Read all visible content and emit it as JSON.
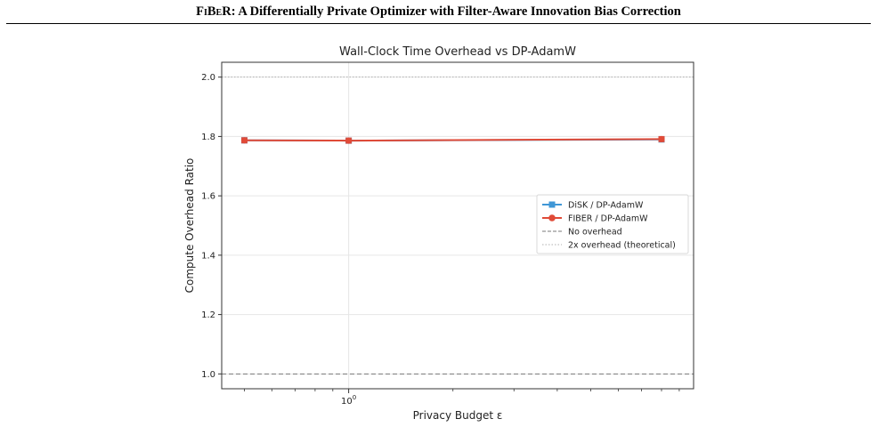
{
  "paper": {
    "header_name": "FiBeR",
    "header_rest": ": A Differentially Private Optimizer with Filter-Aware Innovation Bias Correction"
  },
  "chart_data": {
    "type": "line",
    "title": "Wall-Clock Time Overhead vs DP-AdamW",
    "xlabel": "Privacy Budget ε",
    "ylabel": "Compute Overhead Ratio",
    "x_scale": "log",
    "x_tick_labels": [
      {
        "base": "10",
        "exp": "0"
      }
    ],
    "y_tick_labels": [
      "1.0",
      "1.2",
      "1.4",
      "1.6",
      "1.8",
      "2.0"
    ],
    "ylim": [
      0.95,
      2.05
    ],
    "xlim": [
      0.43,
      9.9
    ],
    "grid": true,
    "legend_position": "center-right",
    "x": [
      0.5,
      1.0,
      8.0
    ],
    "series": [
      {
        "name": "DiSK / DP-AdamW",
        "values": [
          1.787,
          1.786,
          1.79
        ],
        "color": "#3f97d6",
        "marker": "square"
      },
      {
        "name": "FIBER / DP-AdamW",
        "values": [
          1.787,
          1.786,
          1.791
        ],
        "color": "#e04a37",
        "marker": "circle"
      }
    ],
    "reference_lines": [
      {
        "name": "No overhead",
        "y": 1.0,
        "style": "dashed",
        "color": "#7a7a7a"
      },
      {
        "name": "2x overhead (theoretical)",
        "y": 2.0,
        "style": "dotted",
        "color": "#b0b0b0"
      }
    ]
  }
}
